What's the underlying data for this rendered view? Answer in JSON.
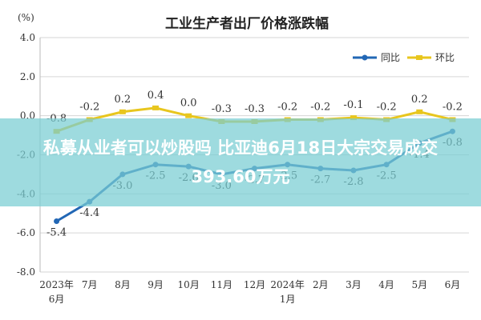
{
  "chart_data": {
    "type": "line",
    "title": "工业生产者出厂价格涨跌幅",
    "ylabel": "(%)",
    "ylim": [
      -8.0,
      4.0
    ],
    "yticks": [
      "4.0",
      "2.0",
      "0.0",
      "-2.0",
      "-4.0",
      "-6.0",
      "-8.0"
    ],
    "yticks_values": [
      4,
      2,
      0,
      -2,
      -4,
      -6,
      -8
    ],
    "categories": [
      "2023年 6月",
      "7月",
      "8月",
      "9月",
      "10月",
      "11月",
      "12月",
      "2024年 1月",
      "2月",
      "3月",
      "4月",
      "5月",
      "6月"
    ],
    "grid": true,
    "legend_position": "top-right",
    "series": [
      {
        "name": "同比",
        "color": "#2267b5",
        "values": [
          -5.4,
          -4.4,
          -3.0,
          -2.5,
          -2.6,
          -3.0,
          -2.7,
          -2.5,
          -2.7,
          -2.8,
          -2.5,
          -1.4,
          -0.8
        ],
        "labels": [
          "-5.4",
          "-4.4",
          "-3.0",
          "-2.5",
          "-2.6",
          "-3.0",
          "-2.7",
          "-2.5",
          "-2.7",
          "-2.8",
          "-2.5",
          "-1.4",
          "-0.8"
        ]
      },
      {
        "name": "环比",
        "color": "#e8c61e",
        "values": [
          -0.8,
          -0.2,
          0.2,
          0.4,
          0.0,
          -0.3,
          -0.3,
          -0.2,
          -0.2,
          -0.1,
          -0.2,
          0.2,
          -0.2
        ],
        "labels": [
          "-0.8",
          "-0.2",
          "0.2",
          "0.4",
          "0.0",
          "-0.3",
          "-0.3",
          "-0.2",
          "-0.2",
          "-0.1",
          "-0.2",
          "0.2",
          "-0.2"
        ]
      }
    ]
  },
  "overlay": {
    "line1": "私募从业者可以炒股吗 比亚迪6月18日大宗交易成交",
    "line2": "393.60万元"
  }
}
